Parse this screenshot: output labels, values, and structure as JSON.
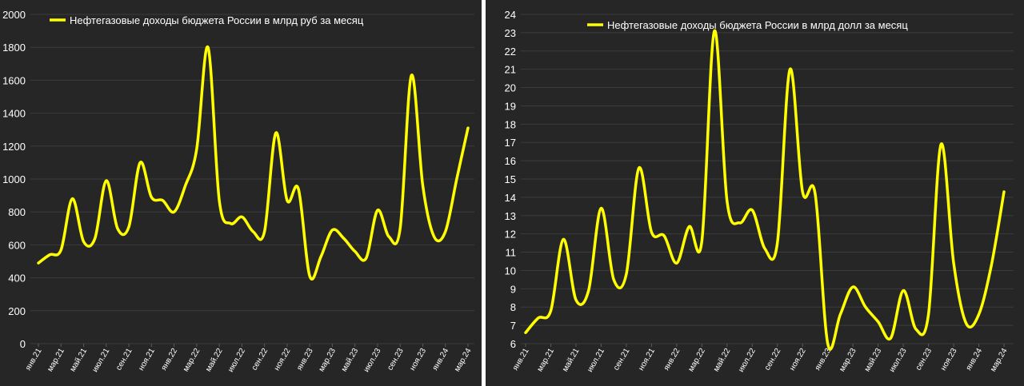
{
  "colors": {
    "line": "#ffff00",
    "background": "#262626",
    "grid": "#3c3c3c",
    "text": "#ffffff"
  },
  "chart_data": [
    {
      "type": "line",
      "legend": "Нефтегазовые доходы бюджета России в млрд руб за месяц",
      "legend_position": "top-left",
      "grid": true,
      "ylim": [
        0,
        2000
      ],
      "yticks": [
        0,
        200,
        400,
        600,
        800,
        1000,
        1200,
        1400,
        1600,
        1800,
        2000
      ],
      "x_tick_labels": [
        "янв.21",
        "мар.21",
        "май.21",
        "июл.21",
        "сен.21",
        "ноя.21",
        "янв.22",
        "мар.22",
        "май.22",
        "июл.22",
        "сен.22",
        "ноя.22",
        "янв.23",
        "мар.23",
        "май.23",
        "июл.23",
        "сен.23",
        "ноя.23",
        "янв.24",
        "мар.24"
      ],
      "x": [
        "янв.21",
        "фев.21",
        "мар.21",
        "апр.21",
        "май.21",
        "июн.21",
        "июл.21",
        "авг.21",
        "сен.21",
        "окт.21",
        "ноя.21",
        "дек.21",
        "янв.22",
        "фев.22",
        "мар.22",
        "апр.22",
        "май.22",
        "июн.22",
        "июл.22",
        "авг.22",
        "сен.22",
        "окт.22",
        "ноя.22",
        "дек.22",
        "янв.23",
        "фев.23",
        "мар.23",
        "апр.23",
        "май.23",
        "июн.23",
        "июл.23",
        "авг.23",
        "сен.23",
        "окт.23",
        "ноя.23",
        "дек.23",
        "янв.24",
        "фев.24",
        "мар.24"
      ],
      "series": [
        {
          "values": [
            490,
            540,
            570,
            880,
            620,
            640,
            990,
            700,
            710,
            1100,
            890,
            870,
            800,
            960,
            1180,
            1800,
            870,
            730,
            770,
            680,
            680,
            1280,
            870,
            940,
            410,
            530,
            690,
            640,
            560,
            520,
            810,
            650,
            700,
            1630,
            960,
            650,
            680,
            1000,
            1310
          ]
        }
      ]
    },
    {
      "type": "line",
      "legend": "Нефтегазовые доходы бюджета России в млрд долл за месяц",
      "legend_position": "top-center",
      "grid": true,
      "ylim": [
        6,
        24
      ],
      "yticks": [
        6,
        7,
        8,
        9,
        10,
        11,
        12,
        13,
        14,
        15,
        16,
        17,
        18,
        19,
        20,
        21,
        22,
        23,
        24
      ],
      "x_tick_labels": [
        "янв.21",
        "мар.21",
        "май.21",
        "июл.21",
        "сен.21",
        "ноя.21",
        "янв.22",
        "мар.22",
        "май.22",
        "июл.22",
        "сен.22",
        "ноя.22",
        "янв.23",
        "мар.23",
        "май.23",
        "июл.23",
        "сен.23",
        "ноя.23",
        "янв.24",
        "мар.24"
      ],
      "x": [
        "янв.21",
        "фев.21",
        "мар.21",
        "апр.21",
        "май.21",
        "июн.21",
        "июл.21",
        "авг.21",
        "сен.21",
        "окт.21",
        "ноя.21",
        "дек.21",
        "янв.22",
        "фев.22",
        "мар.22",
        "апр.22",
        "май.22",
        "июн.22",
        "июл.22",
        "авг.22",
        "сен.22",
        "окт.22",
        "ноя.22",
        "дек.22",
        "янв.23",
        "фев.23",
        "мар.23",
        "апр.23",
        "май.23",
        "июн.23",
        "июл.23",
        "авг.23",
        "сен.23",
        "окт.23",
        "ноя.23",
        "дек.23",
        "янв.24",
        "фев.24",
        "мар.24"
      ],
      "series": [
        {
          "values": [
            6.6,
            7.4,
            7.8,
            11.7,
            8.4,
            8.9,
            13.4,
            9.5,
            9.8,
            15.6,
            12.1,
            11.9,
            10.4,
            12.4,
            11.6,
            23.1,
            13.8,
            12.6,
            13.3,
            11.2,
            11.5,
            21.0,
            14.3,
            14.2,
            6.0,
            7.6,
            9.1,
            8.0,
            7.2,
            6.3,
            8.9,
            6.8,
            7.6,
            16.9,
            10.4,
            7.1,
            7.6,
            10.3,
            14.3
          ]
        }
      ]
    }
  ]
}
